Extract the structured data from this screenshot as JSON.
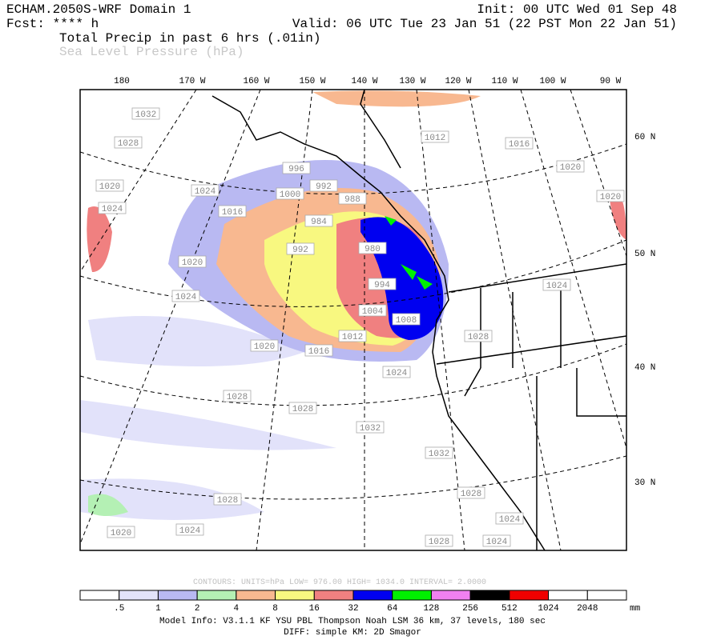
{
  "header": {
    "model": "ECHAM.2050S-WRF Domain 1",
    "init": "Init: 00 UTC Wed 01 Sep 48",
    "forecast": "Fcst: **** h",
    "valid": "Valid: 06 UTC Tue 23 Jan 51 (22 PST Mon 22 Jan 51)",
    "field": "Total Precip in past 6 hrs (.01in)",
    "overlay": "Sea Level Pressure (hPa)"
  },
  "map": {
    "longitudes": [
      "180",
      "170 W",
      "160 W",
      "150 W",
      "140 W",
      "130 W",
      "120 W",
      "110 W",
      "100 W",
      "90 W"
    ],
    "latitudes": [
      "60 N",
      "50 N",
      "40 N",
      "30 N"
    ],
    "contour_labels": [
      "1032",
      "1028",
      "1020",
      "1024",
      "1024",
      "1016",
      "1000",
      "996",
      "992",
      "988",
      "984",
      "980",
      "992",
      "1020",
      "1024",
      "994",
      "1004",
      "1008",
      "1012",
      "1016",
      "1020",
      "1024",
      "1028",
      "1028",
      "1032",
      "1032",
      "1028",
      "1024",
      "1020",
      "1028",
      "1024",
      "1028",
      "1024",
      "1012",
      "1016",
      "1020",
      "1020",
      "1024",
      "1028"
    ]
  },
  "legend": {
    "contours": "CONTOURS:  UNITS=hPa  LOW=  976.00      HIGH=  1034.0      INTERVAL=   2.0000",
    "colors": [
      "#ffffff",
      "#e2e2fa",
      "#b9b9f2",
      "#b4f0b4",
      "#f8b890",
      "#f8f880",
      "#f08080",
      "#0000f0",
      "#00f000",
      "#f080f0",
      "#000000",
      "#f00000",
      "#ffffff",
      "#ffffff"
    ],
    "labels": [
      ".5",
      "1",
      "2",
      "4",
      "8",
      "16",
      "32",
      "64",
      "128",
      "256",
      "512",
      "1024",
      "2048"
    ],
    "unit": "mm"
  },
  "footer": {
    "model_info": "Model Info: V3.1.1    KF       YSU PBL   Thompson     Noah LSM   36 km,    37 levels,  180 sec",
    "diff": "DIFF: simple KM: 2D Smagor"
  }
}
